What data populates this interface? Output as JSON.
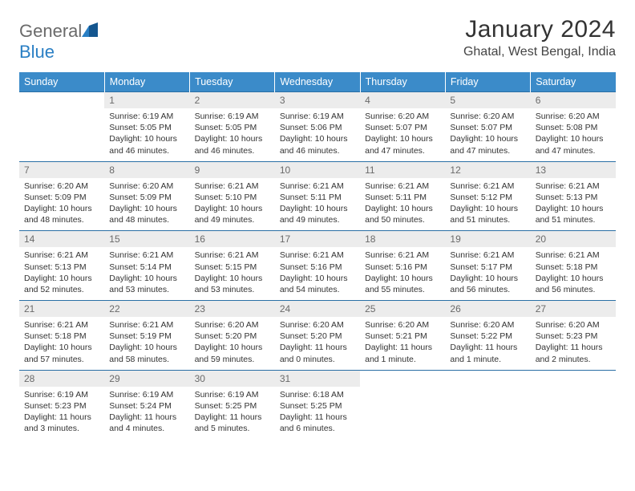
{
  "brand": {
    "name_a": "General",
    "name_b": "Blue"
  },
  "title": "January 2024",
  "location": "Ghatal, West Bengal, India",
  "colors": {
    "header_bg": "#3b8bc9",
    "header_text": "#ffffff",
    "week_divider": "#2a6fa5",
    "daynum_bg": "#ececec",
    "daynum_text": "#6a6a6a",
    "body_text": "#333333",
    "logo_gray": "#6a6a6a",
    "logo_blue": "#2a7fc4"
  },
  "dow": [
    "Sunday",
    "Monday",
    "Tuesday",
    "Wednesday",
    "Thursday",
    "Friday",
    "Saturday"
  ],
  "weeks": [
    [
      null,
      {
        "n": "1",
        "sr": "6:19 AM",
        "ss": "5:05 PM",
        "dl": "Daylight: 10 hours and 46 minutes."
      },
      {
        "n": "2",
        "sr": "6:19 AM",
        "ss": "5:05 PM",
        "dl": "Daylight: 10 hours and 46 minutes."
      },
      {
        "n": "3",
        "sr": "6:19 AM",
        "ss": "5:06 PM",
        "dl": "Daylight: 10 hours and 46 minutes."
      },
      {
        "n": "4",
        "sr": "6:20 AM",
        "ss": "5:07 PM",
        "dl": "Daylight: 10 hours and 47 minutes."
      },
      {
        "n": "5",
        "sr": "6:20 AM",
        "ss": "5:07 PM",
        "dl": "Daylight: 10 hours and 47 minutes."
      },
      {
        "n": "6",
        "sr": "6:20 AM",
        "ss": "5:08 PM",
        "dl": "Daylight: 10 hours and 47 minutes."
      }
    ],
    [
      {
        "n": "7",
        "sr": "6:20 AM",
        "ss": "5:09 PM",
        "dl": "Daylight: 10 hours and 48 minutes."
      },
      {
        "n": "8",
        "sr": "6:20 AM",
        "ss": "5:09 PM",
        "dl": "Daylight: 10 hours and 48 minutes."
      },
      {
        "n": "9",
        "sr": "6:21 AM",
        "ss": "5:10 PM",
        "dl": "Daylight: 10 hours and 49 minutes."
      },
      {
        "n": "10",
        "sr": "6:21 AM",
        "ss": "5:11 PM",
        "dl": "Daylight: 10 hours and 49 minutes."
      },
      {
        "n": "11",
        "sr": "6:21 AM",
        "ss": "5:11 PM",
        "dl": "Daylight: 10 hours and 50 minutes."
      },
      {
        "n": "12",
        "sr": "6:21 AM",
        "ss": "5:12 PM",
        "dl": "Daylight: 10 hours and 51 minutes."
      },
      {
        "n": "13",
        "sr": "6:21 AM",
        "ss": "5:13 PM",
        "dl": "Daylight: 10 hours and 51 minutes."
      }
    ],
    [
      {
        "n": "14",
        "sr": "6:21 AM",
        "ss": "5:13 PM",
        "dl": "Daylight: 10 hours and 52 minutes."
      },
      {
        "n": "15",
        "sr": "6:21 AM",
        "ss": "5:14 PM",
        "dl": "Daylight: 10 hours and 53 minutes."
      },
      {
        "n": "16",
        "sr": "6:21 AM",
        "ss": "5:15 PM",
        "dl": "Daylight: 10 hours and 53 minutes."
      },
      {
        "n": "17",
        "sr": "6:21 AM",
        "ss": "5:16 PM",
        "dl": "Daylight: 10 hours and 54 minutes."
      },
      {
        "n": "18",
        "sr": "6:21 AM",
        "ss": "5:16 PM",
        "dl": "Daylight: 10 hours and 55 minutes."
      },
      {
        "n": "19",
        "sr": "6:21 AM",
        "ss": "5:17 PM",
        "dl": "Daylight: 10 hours and 56 minutes."
      },
      {
        "n": "20",
        "sr": "6:21 AM",
        "ss": "5:18 PM",
        "dl": "Daylight: 10 hours and 56 minutes."
      }
    ],
    [
      {
        "n": "21",
        "sr": "6:21 AM",
        "ss": "5:18 PM",
        "dl": "Daylight: 10 hours and 57 minutes."
      },
      {
        "n": "22",
        "sr": "6:21 AM",
        "ss": "5:19 PM",
        "dl": "Daylight: 10 hours and 58 minutes."
      },
      {
        "n": "23",
        "sr": "6:20 AM",
        "ss": "5:20 PM",
        "dl": "Daylight: 10 hours and 59 minutes."
      },
      {
        "n": "24",
        "sr": "6:20 AM",
        "ss": "5:20 PM",
        "dl": "Daylight: 11 hours and 0 minutes."
      },
      {
        "n": "25",
        "sr": "6:20 AM",
        "ss": "5:21 PM",
        "dl": "Daylight: 11 hours and 1 minute."
      },
      {
        "n": "26",
        "sr": "6:20 AM",
        "ss": "5:22 PM",
        "dl": "Daylight: 11 hours and 1 minute."
      },
      {
        "n": "27",
        "sr": "6:20 AM",
        "ss": "5:23 PM",
        "dl": "Daylight: 11 hours and 2 minutes."
      }
    ],
    [
      {
        "n": "28",
        "sr": "6:19 AM",
        "ss": "5:23 PM",
        "dl": "Daylight: 11 hours and 3 minutes."
      },
      {
        "n": "29",
        "sr": "6:19 AM",
        "ss": "5:24 PM",
        "dl": "Daylight: 11 hours and 4 minutes."
      },
      {
        "n": "30",
        "sr": "6:19 AM",
        "ss": "5:25 PM",
        "dl": "Daylight: 11 hours and 5 minutes."
      },
      {
        "n": "31",
        "sr": "6:18 AM",
        "ss": "5:25 PM",
        "dl": "Daylight: 11 hours and 6 minutes."
      },
      null,
      null,
      null
    ]
  ],
  "labels": {
    "sunrise": "Sunrise:",
    "sunset": "Sunset:"
  }
}
